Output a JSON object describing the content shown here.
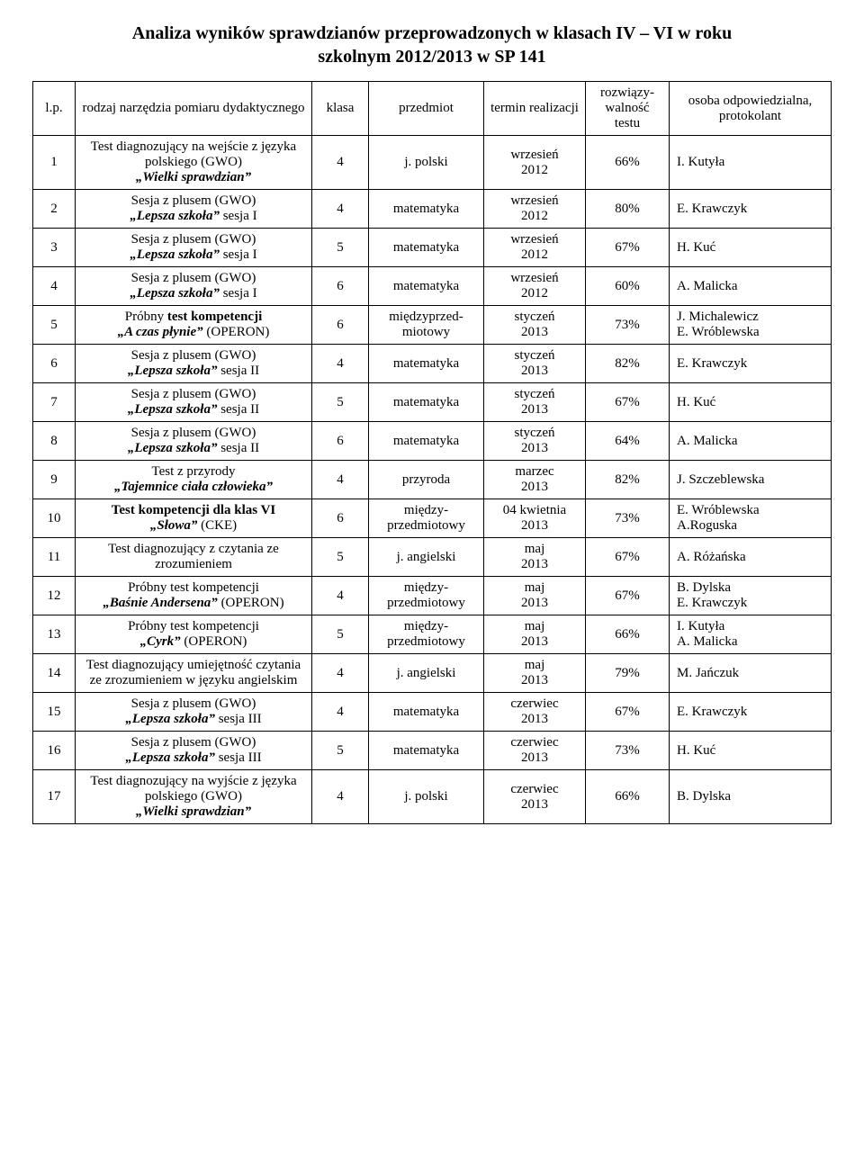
{
  "title_line1": "Analiza wyników sprawdzianów przeprowadzonych w klasach IV – VI w roku",
  "title_line2": "szkolnym 2012/2013 w SP 141",
  "headers": {
    "lp": "l.p.",
    "tool": "rodzaj narzędzia pomiaru dydaktycznego",
    "klasa": "klasa",
    "subject": "przedmiot",
    "term": "termin realizacji",
    "solv": "rozwiązy-walność testu",
    "person": "osoba odpowiedzialna, protokolant"
  },
  "rows": [
    {
      "lp": "1",
      "tool_html": "Test diagnozujący na wejście z języka polskiego (GWO)<br><span class=\"bold ital\">„Wielki sprawdzian”</span>",
      "klasa": "4",
      "subject_html": "j. polski",
      "term_html": "wrzesień<br>2012",
      "solv": "66%",
      "person_html": "I. Kutyła"
    },
    {
      "lp": "2",
      "tool_html": "Sesja z plusem (GWO)<br><span class=\"bold ital\">„Lepsza szkoła”</span> sesja I",
      "klasa": "4",
      "subject_html": "matematyka",
      "term_html": "wrzesień<br>2012",
      "solv": "80%",
      "person_html": "E. Krawczyk"
    },
    {
      "lp": "3",
      "tool_html": "Sesja z plusem (GWO)<br><span class=\"bold ital\">„Lepsza szkoła”</span> sesja I",
      "klasa": "5",
      "subject_html": "matematyka",
      "term_html": "wrzesień<br>2012",
      "solv": "67%",
      "person_html": "H. Kuć"
    },
    {
      "lp": "4",
      "tool_html": "Sesja z plusem (GWO)<br><span class=\"bold ital\">„Lepsza szkoła”</span> sesja I",
      "klasa": "6",
      "subject_html": "matematyka",
      "term_html": "wrzesień<br>2012",
      "solv": "60%",
      "person_html": "A. Malicka"
    },
    {
      "lp": "5",
      "tool_html": "Próbny <span class=\"bold\">test kompetencji</span><br><span class=\"bold ital\">„A czas płynie”</span> (OPERON)",
      "klasa": "6",
      "subject_html": "międzyprzed-<br>miotowy",
      "term_html": "styczeń<br>2013",
      "solv": "73%",
      "person_html": "J. Michalewicz<br>E. Wróblewska"
    },
    {
      "lp": "6",
      "tool_html": "Sesja z plusem (GWO)<br><span class=\"bold ital\">„Lepsza szkoła”</span> sesja II",
      "klasa": "4",
      "subject_html": "matematyka",
      "term_html": "styczeń<br>2013",
      "solv": "82%",
      "person_html": "E. Krawczyk"
    },
    {
      "lp": "7",
      "tool_html": "Sesja z plusem (GWO)<br><span class=\"bold ital\">„Lepsza szkoła”</span> sesja II",
      "klasa": "5",
      "subject_html": "matematyka",
      "term_html": "styczeń<br>2013",
      "solv": "67%",
      "person_html": "H. Kuć"
    },
    {
      "lp": "8",
      "tool_html": "Sesja z plusem (GWO)<br><span class=\"bold ital\">„Lepsza szkoła”</span> sesja II",
      "klasa": "6",
      "subject_html": "matematyka",
      "term_html": "styczeń<br>2013",
      "solv": "64%",
      "person_html": "A. Malicka"
    },
    {
      "lp": "9",
      "tool_html": "Test z przyrody<br><span class=\"bold ital\">„Tajemnice ciała człowieka”</span>",
      "klasa": "4",
      "subject_html": "przyroda",
      "term_html": "marzec<br>2013",
      "solv": "82%",
      "person_html": "J. Szczeblewska"
    },
    {
      "lp": "10",
      "tool_html": "<span class=\"bold\">Test kompetencji dla klas VI</span><br><span class=\"bold ital\">„Słowa”</span> (CKE)",
      "klasa": "6",
      "subject_html": "między-<br>przedmiotowy",
      "term_html": "04 kwietnia<br>2013",
      "solv": "73%",
      "person_html": "E. Wróblewska<br>A.Roguska"
    },
    {
      "lp": "11",
      "tool_html": "Test diagnozujący z czytania ze zrozumieniem",
      "klasa": "5",
      "subject_html": "j. angielski",
      "term_html": "maj<br>2013",
      "solv": "67%",
      "person_html": "A. Różańska"
    },
    {
      "lp": "12",
      "tool_html": "Próbny test kompetencji<br><span class=\"bold ital\">„Baśnie Andersena”</span> (OPERON)",
      "klasa": "4",
      "subject_html": "między-<br>przedmiotowy",
      "term_html": "maj<br>2013",
      "solv": "67%",
      "person_html": "B. Dylska<br>E. Krawczyk"
    },
    {
      "lp": "13",
      "tool_html": "Próbny test kompetencji<br><span class=\"bold ital\">„Cyrk”</span> (OPERON)",
      "klasa": "5",
      "subject_html": "między-<br>przedmiotowy",
      "term_html": "maj<br>2013",
      "solv": "66%",
      "person_html": "I. Kutyła<br>A. Malicka"
    },
    {
      "lp": "14",
      "tool_html": "Test diagnozujący umiejętność czytania ze zrozumieniem w języku angielskim",
      "klasa": "4",
      "subject_html": "j. angielski",
      "term_html": "maj<br>2013",
      "solv": "79%",
      "person_html": "M. Jańczuk"
    },
    {
      "lp": "15",
      "tool_html": "Sesja z plusem (GWO)<br><span class=\"bold ital\">„Lepsza szkoła”</span> sesja III",
      "klasa": "4",
      "subject_html": "matematyka",
      "term_html": "czerwiec<br>2013",
      "solv": "67%",
      "person_html": "E. Krawczyk"
    },
    {
      "lp": "16",
      "tool_html": "Sesja z plusem (GWO)<br><span class=\"bold ital\">„Lepsza szkoła”</span> sesja III",
      "klasa": "5",
      "subject_html": "matematyka",
      "term_html": "czerwiec<br>2013",
      "solv": "73%",
      "person_html": "H. Kuć"
    },
    {
      "lp": "17",
      "tool_html": "Test diagnozujący na wyjście z języka polskiego (GWO)<br><span class=\"bold ital\">„Wielki sprawdzian”</span>",
      "klasa": "4",
      "subject_html": "j. polski",
      "term_html": "czerwiec<br>2013",
      "solv": "66%",
      "person_html": "B. Dylska"
    }
  ]
}
